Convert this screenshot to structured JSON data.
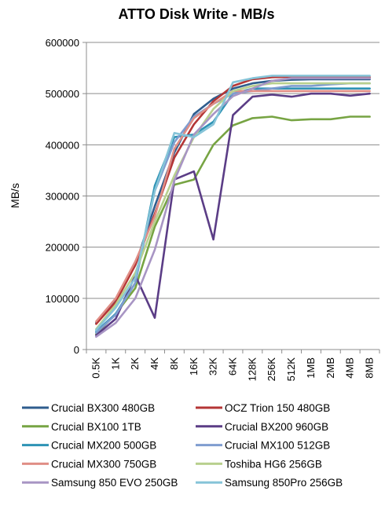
{
  "chart_data": {
    "type": "line",
    "title": "ATTO Disk Write - MB/s",
    "xlabel": "",
    "ylabel": "MB/s",
    "ylim": [
      0,
      600000
    ],
    "yticks": [
      0,
      100000,
      200000,
      300000,
      400000,
      500000,
      600000
    ],
    "yticklabels": [
      "0",
      "100000",
      "200000",
      "300000",
      "400000",
      "500000",
      "600000"
    ],
    "grid": "horizontal",
    "legend_position": "bottom",
    "categories": [
      "0.5K",
      "1K",
      "2K",
      "4K",
      "8K",
      "16K",
      "32K",
      "64K",
      "128K",
      "256K",
      "512K",
      "1MB",
      "2MB",
      "4MB",
      "8MB"
    ],
    "series": [
      {
        "name": "Crucial BX300 480GB",
        "color": "#2f5d8e",
        "values": [
          52000,
          98000,
          165000,
          280000,
          385000,
          460000,
          490000,
          510000,
          520000,
          525000,
          527000,
          528000,
          528000,
          528000,
          528000
        ]
      },
      {
        "name": "OCZ Trion 150 480GB",
        "color": "#b43636",
        "values": [
          50000,
          93000,
          165000,
          265000,
          375000,
          440000,
          485000,
          515000,
          528000,
          532000,
          533000,
          532000,
          532000,
          532000,
          532000
        ]
      },
      {
        "name": "Crucial BX100 1TB",
        "color": "#77a443",
        "values": [
          30000,
          70000,
          120000,
          240000,
          322000,
          332000,
          400000,
          438000,
          452000,
          455000,
          448000,
          450000,
          450000,
          455000,
          455000
        ]
      },
      {
        "name": "Crucial BX200 960GB",
        "color": "#5b3d86",
        "values": [
          28000,
          60000,
          145000,
          62000,
          332000,
          348000,
          215000,
          458000,
          494000,
          498000,
          494000,
          500000,
          500000,
          496000,
          500000
        ]
      },
      {
        "name": "Crucial MX200 500GB",
        "color": "#2e93b5",
        "values": [
          35000,
          70000,
          130000,
          320000,
          415000,
          420000,
          445000,
          500000,
          510000,
          510000,
          510000,
          510000,
          510000,
          510000,
          510000
        ]
      },
      {
        "name": "Crucial MX100 512GB",
        "color": "#7f9dd0",
        "values": [
          33000,
          68000,
          130000,
          310000,
          405000,
          455000,
          480000,
          500000,
          505000,
          510000,
          515000,
          515000,
          518000,
          520000,
          520000
        ]
      },
      {
        "name": "Crucial MX300 750GB",
        "color": "#e08e86",
        "values": [
          55000,
          100000,
          172000,
          260000,
          392000,
          452000,
          480000,
          505000,
          505000,
          505000,
          505000,
          505000,
          505000,
          505000,
          505000
        ]
      },
      {
        "name": "Toshiba HG6 256GB",
        "color": "#b8d08e",
        "values": [
          40000,
          88000,
          150000,
          250000,
          340000,
          415000,
          470000,
          505000,
          515000,
          520000,
          520000,
          520000,
          520000,
          520000,
          520000
        ]
      },
      {
        "name": "Samsung 850 EVO 250GB",
        "color": "#a895c4",
        "values": [
          25000,
          52000,
          100000,
          195000,
          330000,
          420000,
          460000,
          495000,
          510000,
          525000,
          530000,
          530000,
          530000,
          530000,
          530000
        ]
      },
      {
        "name": "Samsung 850Pro 256GB",
        "color": "#86c4d8",
        "values": [
          38000,
          82000,
          140000,
          310000,
          423000,
          415000,
          440000,
          522000,
          530000,
          535000,
          535000,
          535000,
          535000,
          535000,
          535000
        ]
      }
    ]
  }
}
